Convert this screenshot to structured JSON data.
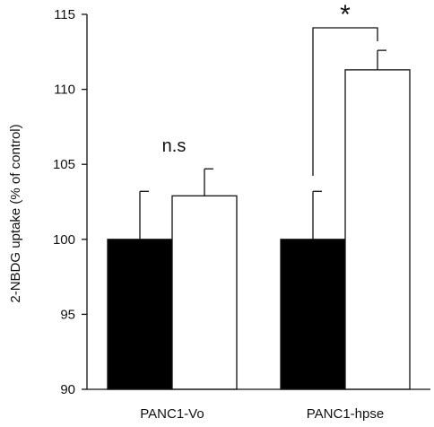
{
  "chart_data": {
    "type": "bar",
    "title": "",
    "xlabel": "",
    "ylabel": "2-NBDG uptake (% of control)",
    "ylim": [
      90,
      115
    ],
    "yticks": [
      90,
      95,
      100,
      105,
      110,
      115
    ],
    "categories": [
      "PANC1-Vo",
      "PANC1-hpse"
    ],
    "series": [
      {
        "values": [
          100,
          100
        ],
        "errors": [
          3.2,
          3.2
        ],
        "color": "#000000"
      },
      {
        "values": [
          102.9,
          111.3
        ],
        "errors": [
          1.8,
          1.3
        ],
        "color": "#ffffff"
      }
    ],
    "annotations": [
      {
        "text": "n.s",
        "category": "PANC1-Vo"
      },
      {
        "text": "*",
        "category": "PANC1-hpse"
      }
    ],
    "grid": false,
    "legend": "none"
  }
}
